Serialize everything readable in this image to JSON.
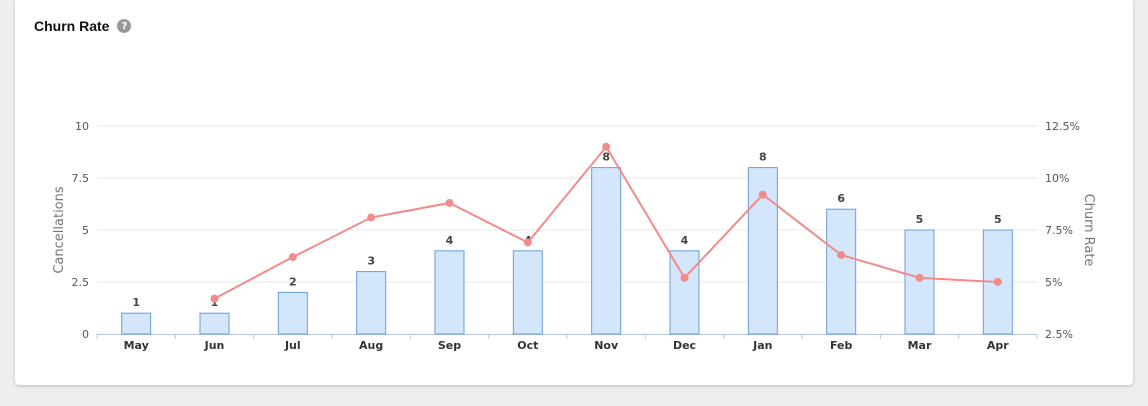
{
  "card": {
    "title": "Churn Rate",
    "help_icon": "question-circle-icon",
    "help_glyph": "?"
  },
  "colors": {
    "bar_fill": "#d4e6fc",
    "bar_stroke": "#6a9fd6",
    "line": "#f28b8b",
    "grid": "#e8e8e8"
  },
  "chart_data": {
    "type": "bar",
    "title": "",
    "xlabel": "",
    "ylabel": "Cancellations",
    "y2label": "Churn Rate",
    "categories": [
      "May",
      "Jun",
      "Jul",
      "Aug",
      "Sep",
      "Oct",
      "Nov",
      "Dec",
      "Jan",
      "Feb",
      "Mar",
      "Apr"
    ],
    "ylim": [
      0,
      10
    ],
    "yticks": [
      "0",
      "2.5",
      "5",
      "7.5",
      "10"
    ],
    "y2lim": [
      2.5,
      12.5
    ],
    "y2ticks": [
      "2.5%",
      "5%",
      "7.5%",
      "10%",
      "12.5%"
    ],
    "grid": true,
    "series": [
      {
        "name": "Cancellations",
        "type": "bar",
        "axis": "left",
        "values": [
          1,
          1,
          2,
          3,
          4,
          4,
          8,
          4,
          8,
          6,
          5,
          5
        ],
        "labels": [
          "1",
          "1",
          "2",
          "3",
          "4",
          "4",
          "8",
          "4",
          "8",
          "6",
          "5",
          "5"
        ]
      },
      {
        "name": "Churn Rate",
        "type": "line",
        "axis": "right",
        "values": [
          null,
          4.2,
          6.2,
          8.1,
          8.8,
          6.9,
          11.5,
          5.2,
          9.2,
          6.3,
          5.2,
          5.0
        ]
      }
    ]
  }
}
